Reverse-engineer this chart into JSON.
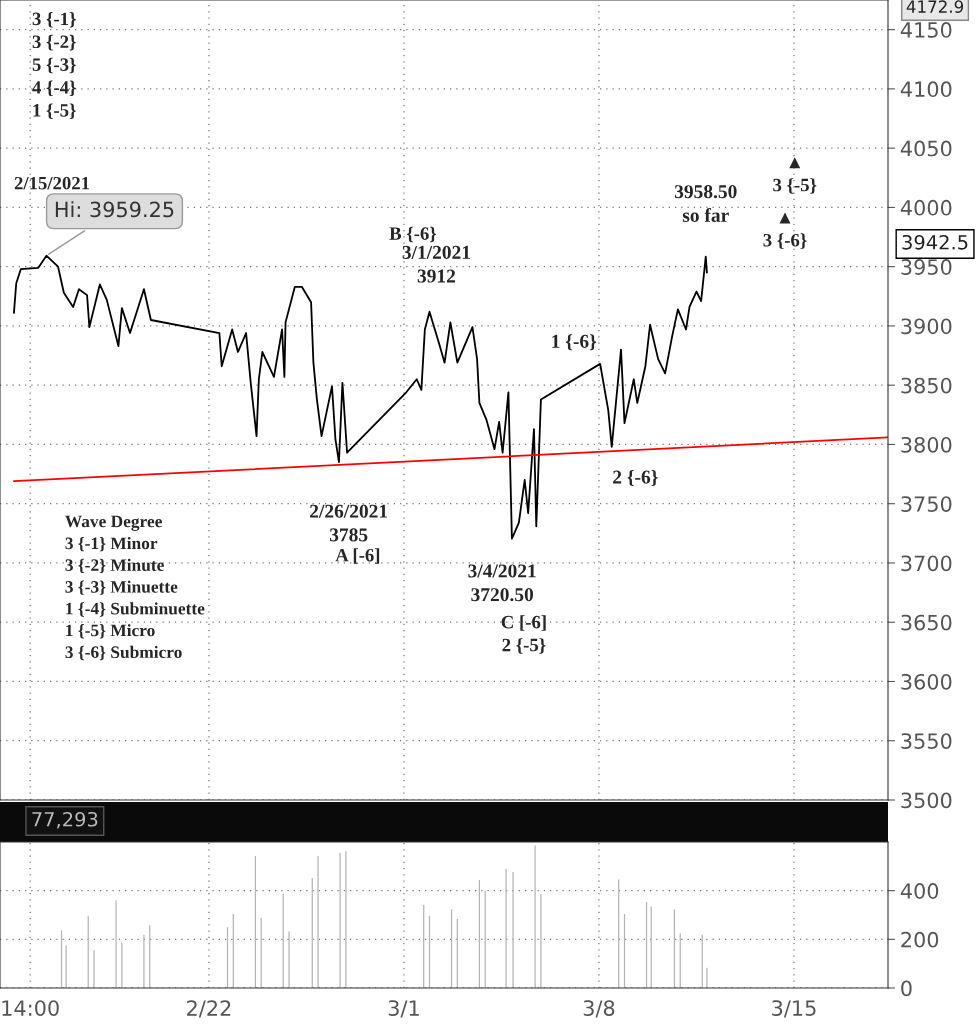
{
  "chart_data": [
    {
      "type": "line",
      "xlim": [
        "2021-02-14T12:00",
        "2021-03-18T09:00"
      ],
      "ylim": [
        3500,
        4175
      ],
      "xticks": [
        {
          "value": "2021-02-15T14:00",
          "label": null
        },
        {
          "value": "2021-02-22",
          "label": null
        },
        {
          "value": "2021-03-01",
          "label": null
        },
        {
          "value": "2021-03-08",
          "label": null
        },
        {
          "value": "2021-03-15",
          "label": null
        }
      ],
      "yticks": [
        3500,
        3550,
        3600,
        3650,
        3700,
        3750,
        3800,
        3850,
        3900,
        3950,
        4000,
        4050,
        4100,
        4150
      ],
      "tick_labels": "y",
      "grid": true,
      "line_style": "solid",
      "marker": "none",
      "series": [
        {
          "color": "#000000",
          "x": [
            "2021-02-15T00:00",
            "2021-02-15T02:00",
            "2021-02-15T06:00",
            "2021-02-15T21:00",
            "2021-02-16T04:00",
            "2021-02-16T14:00",
            "2021-02-16T19:00",
            "2021-02-17T03:00",
            "2021-02-17T08:00",
            "2021-02-17T15:00",
            "2021-02-17T17:00",
            "2021-02-18T02:00",
            "2021-02-18T08:00",
            "2021-02-18T18:00",
            "2021-02-18T21:00",
            "2021-02-19T04:00",
            "2021-02-19T16:00",
            "2021-02-19T22:00",
            "2021-02-22T09:00",
            "2021-02-22T11:00",
            "2021-02-22T20:00",
            "2021-02-23T01:00",
            "2021-02-23T08:00",
            "2021-02-23T12:00",
            "2021-02-23T17:00",
            "2021-02-23T19:00",
            "2021-02-23T22:00",
            "2021-02-24T08:00",
            "2021-02-24T15:00",
            "2021-02-24T17:00",
            "2021-02-24T18:00",
            "2021-02-25T02:00",
            "2021-02-25T08:00",
            "2021-02-25T16:00",
            "2021-02-25T18:00",
            "2021-02-25T21:00",
            "2021-02-26T01:00",
            "2021-02-26T10:00",
            "2021-02-26T13:00",
            "2021-02-26T16:00",
            "2021-02-26T19:00",
            "2021-02-26T23:00",
            "2021-03-01T02:00",
            "2021-03-01T11:00",
            "2021-03-01T15:00",
            "2021-03-01T18:00",
            "2021-03-01T22:00",
            "2021-03-02T06:00",
            "2021-03-02T11:00",
            "2021-03-02T16:00",
            "2021-03-02T22:00",
            "2021-03-03T11:00",
            "2021-03-03T15:00",
            "2021-03-03T17:00",
            "2021-03-03T23:00",
            "2021-03-04T06:00",
            "2021-03-04T10:00",
            "2021-03-04T13:00",
            "2021-03-04T18:00",
            "2021-03-04T21:00",
            "2021-03-05T03:00",
            "2021-03-05T08:00",
            "2021-03-05T11:00",
            "2021-03-05T16:00",
            "2021-03-05T18:00",
            "2021-03-05T22:00",
            "2021-03-08T01:00",
            "2021-03-08T08:00",
            "2021-03-08T11:00",
            "2021-03-08T19:00",
            "2021-03-08T22:00",
            "2021-03-09T06:00",
            "2021-03-09T09:00",
            "2021-03-09T16:00",
            "2021-03-09T20:00",
            "2021-03-10T03:00",
            "2021-03-10T09:00",
            "2021-03-10T15:00",
            "2021-03-10T20:00",
            "2021-03-11T03:00",
            "2021-03-11T06:00",
            "2021-03-11T12:00",
            "2021-03-11T16:00",
            "2021-03-11T20:00",
            "2021-03-11T21:00"
          ],
          "values": [
            3911,
            3936,
            3948,
            3949,
            3959.25,
            3950,
            3928,
            3916,
            3931,
            3926,
            3899,
            3935,
            3922,
            3883,
            3915,
            3894,
            3931,
            3905,
            3894,
            3866,
            3897,
            3878,
            3894,
            3852,
            3807,
            3855,
            3878,
            3857,
            3897,
            3857,
            3903,
            3933,
            3933,
            3920,
            3869,
            3838,
            3807,
            3849,
            3804,
            3785,
            3852,
            3793,
            3844,
            3855,
            3846,
            3897,
            3912,
            3886,
            3869,
            3903,
            3869,
            3899,
            3872,
            3835,
            3821,
            3796,
            3819,
            3793,
            3844,
            3720.5,
            3734,
            3770,
            3742,
            3813,
            3731,
            3838,
            3868,
            3829,
            3798,
            3880,
            3818,
            3855,
            3835,
            3866,
            3901,
            3872,
            3860,
            3891,
            3914,
            3897,
            3916,
            3929,
            3921,
            3958.5,
            3945
          ]
        },
        {
          "type": "line",
          "color": "#ff0000",
          "x": [
            "2021-02-15T00:00",
            "2021-03-18T09:00"
          ],
          "values": [
            3769,
            3806
          ]
        }
      ],
      "annotations": [
        {
          "text": "Hi: 3959.25",
          "x": "2021-02-16T04:00",
          "y": 3959.25
        },
        {
          "text": "3/1/2021\n3912",
          "x": "2021-03-01T22:00",
          "y": 3912
        },
        {
          "text": "2/26/2021\n3785",
          "x": "2021-02-26T16:00",
          "y": 3785
        },
        {
          "text": "3/4/2021\n3720.50",
          "x": "2021-03-04T21:00",
          "y": 3720.5
        },
        {
          "text": "1 {-6}",
          "x": "2021-03-08T01:00",
          "y": 3868
        },
        {
          "text": "2 {-6}",
          "x": "2021-03-08T11:00",
          "y": 3798
        },
        {
          "text": "3958.50\nso far",
          "x": "2021-03-11T20:00",
          "y": 3958.5
        },
        "3 {-1}\n3 {-2}\n5 {-3}\n4 {-4}\n1 {-5}",
        "Wave Degree\n3 {-1} Minor\n3 {-2} Minute\n3 {-3} Minuette\n1 {-4} Subminuette\n1 {-5} Micro\n3 {-6} Submicro",
        "▲\n3 {-5}",
        "▲\n3 {-6}",
        "4172.9",
        "3942.5",
        "2/15/2021",
        "B {-6}",
        "A [-6]",
        "C [-6]\n2 {-5}"
      ]
    },
    {
      "type": "bar",
      "xlim": [
        "2021-02-14T12:00",
        "2021-03-18T09:00"
      ],
      "ylim": [
        0,
        600
      ],
      "xticks": [
        {
          "value": "2021-02-15T14:00",
          "label": "14:00"
        },
        {
          "value": "2021-02-22",
          "label": "2/22"
        },
        {
          "value": "2021-03-01",
          "label": "3/1"
        },
        {
          "value": "2021-03-08",
          "label": "3/8"
        },
        {
          "value": "2021-03-15",
          "label": "3/15"
        }
      ],
      "yticks": [
        0,
        200,
        400
      ],
      "grid": true,
      "series": [
        {
          "color": "#b4b4b4",
          "x": [
            "2021-02-16T17:00",
            "2021-02-16T21:00",
            "2021-02-17T16:00",
            "2021-02-17T21:00",
            "2021-02-18T16:00",
            "2021-02-18T21:00",
            "2021-02-19T16:00",
            "2021-02-19T21:00",
            "2021-02-22T16:00",
            "2021-02-22T21:00",
            "2021-02-23T16:00",
            "2021-02-23T21:00",
            "2021-02-24T16:00",
            "2021-02-24T21:00",
            "2021-02-25T17:00",
            "2021-02-25T22:00",
            "2021-02-26T17:00",
            "2021-02-26T22:00",
            "2021-03-01T17:00",
            "2021-03-01T22:00",
            "2021-03-02T17:00",
            "2021-03-02T22:00",
            "2021-03-03T17:00",
            "2021-03-03T22:00",
            "2021-03-04T16:00",
            "2021-03-04T22:00",
            "2021-03-05T17:00",
            "2021-03-05T22:00",
            "2021-03-08T17:00",
            "2021-03-08T22:00",
            "2021-03-09T17:00",
            "2021-03-09T21:00",
            "2021-03-10T17:00",
            "2021-03-10T22:00",
            "2021-03-11T17:00",
            "2021-03-11T21:00"
          ],
          "values": [
            237,
            175,
            297,
            155,
            361,
            186,
            219,
            258,
            250,
            304,
            542,
            289,
            387,
            232,
            452,
            542,
            555,
            562,
            341,
            297,
            323,
            284,
            444,
            400,
            490,
            477,
            586,
            387,
            446,
            304,
            353,
            335,
            323,
            224,
            219,
            83
          ]
        }
      ],
      "annotations": [
        "77,293"
      ]
    }
  ]
}
